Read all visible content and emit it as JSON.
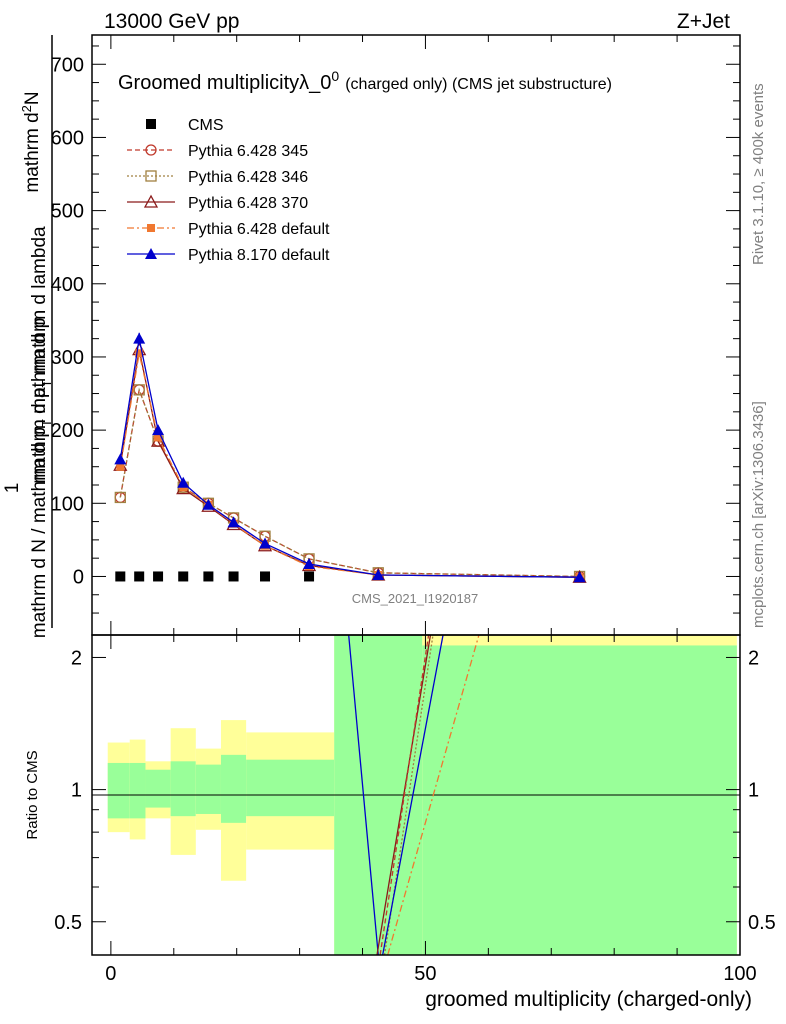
{
  "header": {
    "left": "13000 GeV pp",
    "right": "Z+Jet"
  },
  "plot_title": {
    "main": "Groomed multiplicity",
    "lambda": "λ_0",
    "lambda_sup": "0",
    "suffix": "(charged only) (CMS jet substructure)"
  },
  "side_labels": {
    "rivet": "Rivet 3.1.10, ≥ 400k events",
    "mcplots": "mcplots.cern.ch [arXiv:1306.3436]"
  },
  "watermark": "CMS_2021_I1920187",
  "y_label": {
    "line1_prefix": "mathrm d",
    "line1_sup": "2",
    "line1_suffix": "N",
    "line2_a": "mathrm d p",
    "line2_sub": "T",
    "line2_b": " mathrm d lambda",
    "frac_num": "1",
    "denominator_a": "mathrm d N / mathrm d p",
    "denominator_sub": "T",
    "denominator_b": " mathrm d p"
  },
  "ratio_ylabel": "Ratio to CMS",
  "xlabel": "groomed multiplicity (charged-only)",
  "colors": {
    "cms": "#000000",
    "p345": "#c0392b",
    "p346": "#a08040",
    "p370": "#8b1a1a",
    "p6default": "#f07830",
    "p8default": "#0000cc",
    "band_green": "#99ff99",
    "band_yellow": "#ffff99"
  },
  "legend": [
    {
      "key": "cms",
      "label": "CMS",
      "style": "cms"
    },
    {
      "key": "p345",
      "label": "Pythia 6.428 345",
      "style": "p345"
    },
    {
      "key": "p346",
      "label": "Pythia 6.428 346",
      "style": "p346"
    },
    {
      "key": "p370",
      "label": "Pythia 6.428 370",
      "style": "p370"
    },
    {
      "key": "p6default",
      "label": "Pythia 6.428 default",
      "style": "p6default"
    },
    {
      "key": "p8default",
      "label": "Pythia 8.170 default",
      "style": "p8default"
    }
  ],
  "chart_data": {
    "type": "line",
    "x": [
      1.5,
      4.5,
      7.5,
      11.5,
      15.5,
      19.5,
      24.5,
      31.5,
      42.5,
      74.5
    ],
    "xlim": [
      -3,
      100
    ],
    "ylim": [
      -80,
      740
    ],
    "yticks": [
      0,
      100,
      200,
      300,
      400,
      500,
      600,
      700
    ],
    "xticks": [
      0,
      50,
      100
    ],
    "series": [
      {
        "name": "CMS",
        "key": "cms",
        "values": [
          0,
          0,
          0,
          0,
          0,
          0,
          0,
          0,
          null,
          null
        ]
      },
      {
        "name": "Pythia 6.428 345",
        "key": "p345",
        "values": [
          108,
          255,
          185,
          122,
          100,
          80,
          55,
          24,
          5,
          0
        ]
      },
      {
        "name": "Pythia 6.428 346",
        "key": "p346",
        "values": [
          108,
          255,
          185,
          122,
          100,
          80,
          55,
          24,
          5,
          0
        ]
      },
      {
        "name": "Pythia 6.428 370",
        "key": "p370",
        "values": [
          152,
          310,
          185,
          120,
          96,
          71,
          42,
          15,
          2,
          -1
        ]
      },
      {
        "name": "Pythia 6.428 default",
        "key": "p6default",
        "values": [
          150,
          305,
          190,
          122,
          98,
          72,
          42,
          14,
          2,
          -1
        ]
      },
      {
        "name": "Pythia 8.170 default",
        "key": "p8default",
        "values": [
          160,
          325,
          200,
          128,
          98,
          74,
          45,
          17,
          2,
          -1
        ]
      }
    ],
    "ratio": {
      "ylim": [
        0.42,
        2.25
      ],
      "log": true,
      "yticks": [
        0.5,
        1,
        2
      ],
      "bins": [
        {
          "x0": -0.5,
          "x1": 3,
          "green": [
            0.86,
            1.15
          ],
          "yellow": [
            0.8,
            1.28
          ]
        },
        {
          "x0": 3,
          "x1": 5.5,
          "green": [
            0.86,
            1.15
          ],
          "yellow": [
            0.77,
            1.3
          ]
        },
        {
          "x0": 5.5,
          "x1": 9.5,
          "green": [
            0.91,
            1.11
          ],
          "yellow": [
            0.86,
            1.16
          ]
        },
        {
          "x0": 9.5,
          "x1": 13.5,
          "green": [
            0.87,
            1.16
          ],
          "yellow": [
            0.71,
            1.38
          ]
        },
        {
          "x0": 13.5,
          "x1": 17.5,
          "green": [
            0.88,
            1.14
          ],
          "yellow": [
            0.81,
            1.24
          ]
        },
        {
          "x0": 17.5,
          "x1": 21.5,
          "green": [
            0.84,
            1.2
          ],
          "yellow": [
            0.62,
            1.44
          ]
        },
        {
          "x0": 21.5,
          "x1": 35.5,
          "green": [
            0.87,
            1.17
          ],
          "yellow": [
            0.73,
            1.35
          ]
        },
        {
          "x0": 35.5,
          "x1": 49.5,
          "green": [
            0.42,
            2.25
          ],
          "yellow": [
            0.42,
            2.25
          ]
        },
        {
          "x0": 49.5,
          "x1": 99.5,
          "green": [
            0.42,
            2.13
          ],
          "yellow": [
            0.42,
            2.25
          ]
        }
      ],
      "lines": [
        {
          "key": "p8default",
          "points": [
            [
              37.8,
              2.25
            ],
            [
              42.5,
              0.42
            ]
          ]
        },
        {
          "key": "p370",
          "points": [
            [
              42.3,
              0.42
            ],
            [
              50.8,
              2.25
            ]
          ]
        },
        {
          "key": "p345",
          "points": [
            [
              42.8,
              0.42
            ],
            [
              50.5,
              2.25
            ]
          ]
        },
        {
          "key": "p346",
          "points": [
            [
              43.5,
              0.42
            ],
            [
              51.2,
              2.25
            ]
          ]
        },
        {
          "key": "p8default",
          "points": [
            [
              43.2,
              0.42
            ],
            [
              52.8,
              2.25
            ]
          ]
        },
        {
          "key": "p6default",
          "points": [
            [
              44.0,
              0.42
            ],
            [
              58.5,
              2.25
            ]
          ]
        }
      ]
    }
  }
}
